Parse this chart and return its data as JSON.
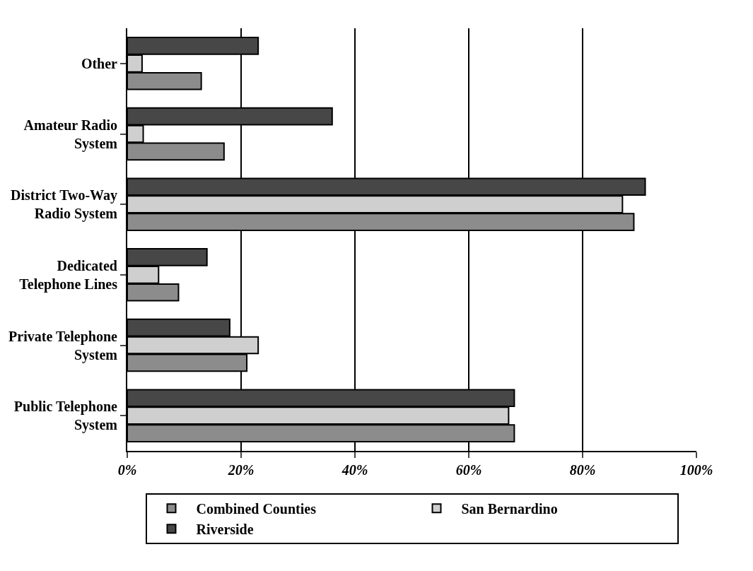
{
  "chart_data": {
    "type": "bar",
    "orientation": "horizontal",
    "categories": [
      "Other",
      "Amateur Radio System",
      "District Two-Way Radio System",
      "Dedicated Telephone Lines",
      "Private Telephone System",
      "Public Telephone System"
    ],
    "series": [
      {
        "name": "Combined Counties",
        "color": "#8c8c8c",
        "values": [
          13,
          17,
          89,
          9,
          21,
          68
        ]
      },
      {
        "name": "San Bernardino",
        "color": "#cfcfcf",
        "values": [
          2.6,
          2.8,
          87,
          5.5,
          23,
          67
        ]
      },
      {
        "name": "Riverside",
        "color": "#474747",
        "values": [
          23,
          36,
          91,
          14,
          18,
          68
        ]
      }
    ],
    "xlim": [
      0,
      100
    ],
    "xticks": [
      {
        "value": 0,
        "label": "0%"
      },
      {
        "value": 20,
        "label": "20%"
      },
      {
        "value": 40,
        "label": "40%"
      },
      {
        "value": 60,
        "label": "60%"
      },
      {
        "value": 80,
        "label": "80%"
      },
      {
        "value": 100,
        "label": "100%"
      }
    ],
    "grid": "x",
    "legend": "bottom"
  }
}
